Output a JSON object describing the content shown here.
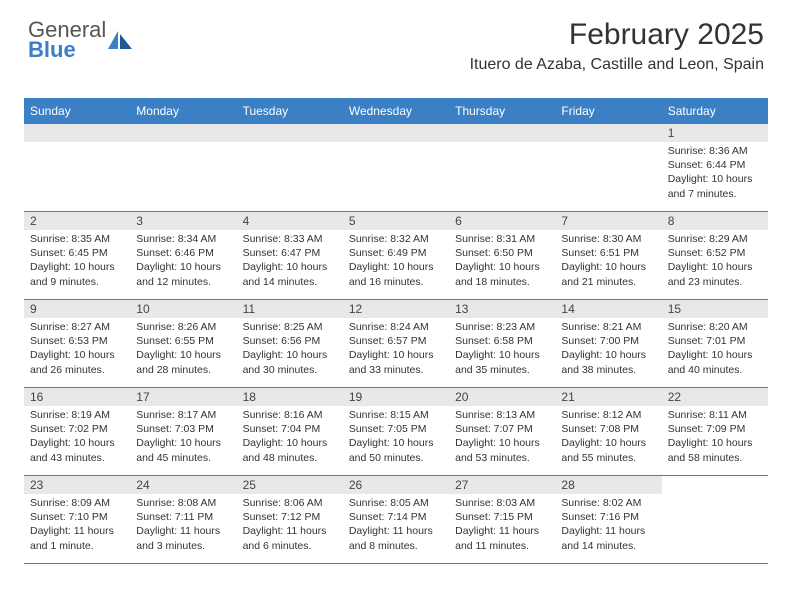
{
  "logo": {
    "text_top": "General",
    "text_bottom": "Blue"
  },
  "title": "February 2025",
  "location": "Ituero de Azaba, Castille and Leon, Spain",
  "colors": {
    "header_bg": "#3b7fc4",
    "header_fg": "#ffffff",
    "daynum_bg": "#e8e8e8",
    "border": "#3b7fc4",
    "text": "#333333",
    "logo_gray": "#555555",
    "logo_blue": "#3b7fc4"
  },
  "typography": {
    "title_fontsize": 30,
    "location_fontsize": 16,
    "cell_fontsize": 10.5
  },
  "day_headers": [
    "Sunday",
    "Monday",
    "Tuesday",
    "Wednesday",
    "Thursday",
    "Friday",
    "Saturday"
  ],
  "weeks": [
    [
      null,
      null,
      null,
      null,
      null,
      null,
      {
        "n": "1",
        "sunrise": "8:36 AM",
        "sunset": "6:44 PM",
        "daylight": "10 hours and 7 minutes."
      }
    ],
    [
      {
        "n": "2",
        "sunrise": "8:35 AM",
        "sunset": "6:45 PM",
        "daylight": "10 hours and 9 minutes."
      },
      {
        "n": "3",
        "sunrise": "8:34 AM",
        "sunset": "6:46 PM",
        "daylight": "10 hours and 12 minutes."
      },
      {
        "n": "4",
        "sunrise": "8:33 AM",
        "sunset": "6:47 PM",
        "daylight": "10 hours and 14 minutes."
      },
      {
        "n": "5",
        "sunrise": "8:32 AM",
        "sunset": "6:49 PM",
        "daylight": "10 hours and 16 minutes."
      },
      {
        "n": "6",
        "sunrise": "8:31 AM",
        "sunset": "6:50 PM",
        "daylight": "10 hours and 18 minutes."
      },
      {
        "n": "7",
        "sunrise": "8:30 AM",
        "sunset": "6:51 PM",
        "daylight": "10 hours and 21 minutes."
      },
      {
        "n": "8",
        "sunrise": "8:29 AM",
        "sunset": "6:52 PM",
        "daylight": "10 hours and 23 minutes."
      }
    ],
    [
      {
        "n": "9",
        "sunrise": "8:27 AM",
        "sunset": "6:53 PM",
        "daylight": "10 hours and 26 minutes."
      },
      {
        "n": "10",
        "sunrise": "8:26 AM",
        "sunset": "6:55 PM",
        "daylight": "10 hours and 28 minutes."
      },
      {
        "n": "11",
        "sunrise": "8:25 AM",
        "sunset": "6:56 PM",
        "daylight": "10 hours and 30 minutes."
      },
      {
        "n": "12",
        "sunrise": "8:24 AM",
        "sunset": "6:57 PM",
        "daylight": "10 hours and 33 minutes."
      },
      {
        "n": "13",
        "sunrise": "8:23 AM",
        "sunset": "6:58 PM",
        "daylight": "10 hours and 35 minutes."
      },
      {
        "n": "14",
        "sunrise": "8:21 AM",
        "sunset": "7:00 PM",
        "daylight": "10 hours and 38 minutes."
      },
      {
        "n": "15",
        "sunrise": "8:20 AM",
        "sunset": "7:01 PM",
        "daylight": "10 hours and 40 minutes."
      }
    ],
    [
      {
        "n": "16",
        "sunrise": "8:19 AM",
        "sunset": "7:02 PM",
        "daylight": "10 hours and 43 minutes."
      },
      {
        "n": "17",
        "sunrise": "8:17 AM",
        "sunset": "7:03 PM",
        "daylight": "10 hours and 45 minutes."
      },
      {
        "n": "18",
        "sunrise": "8:16 AM",
        "sunset": "7:04 PM",
        "daylight": "10 hours and 48 minutes."
      },
      {
        "n": "19",
        "sunrise": "8:15 AM",
        "sunset": "7:05 PM",
        "daylight": "10 hours and 50 minutes."
      },
      {
        "n": "20",
        "sunrise": "8:13 AM",
        "sunset": "7:07 PM",
        "daylight": "10 hours and 53 minutes."
      },
      {
        "n": "21",
        "sunrise": "8:12 AM",
        "sunset": "7:08 PM",
        "daylight": "10 hours and 55 minutes."
      },
      {
        "n": "22",
        "sunrise": "8:11 AM",
        "sunset": "7:09 PM",
        "daylight": "10 hours and 58 minutes."
      }
    ],
    [
      {
        "n": "23",
        "sunrise": "8:09 AM",
        "sunset": "7:10 PM",
        "daylight": "11 hours and 1 minute."
      },
      {
        "n": "24",
        "sunrise": "8:08 AM",
        "sunset": "7:11 PM",
        "daylight": "11 hours and 3 minutes."
      },
      {
        "n": "25",
        "sunrise": "8:06 AM",
        "sunset": "7:12 PM",
        "daylight": "11 hours and 6 minutes."
      },
      {
        "n": "26",
        "sunrise": "8:05 AM",
        "sunset": "7:14 PM",
        "daylight": "11 hours and 8 minutes."
      },
      {
        "n": "27",
        "sunrise": "8:03 AM",
        "sunset": "7:15 PM",
        "daylight": "11 hours and 11 minutes."
      },
      {
        "n": "28",
        "sunrise": "8:02 AM",
        "sunset": "7:16 PM",
        "daylight": "11 hours and 14 minutes."
      },
      null
    ]
  ],
  "labels": {
    "sunrise": "Sunrise: ",
    "sunset": "Sunset: ",
    "daylight": "Daylight: "
  }
}
